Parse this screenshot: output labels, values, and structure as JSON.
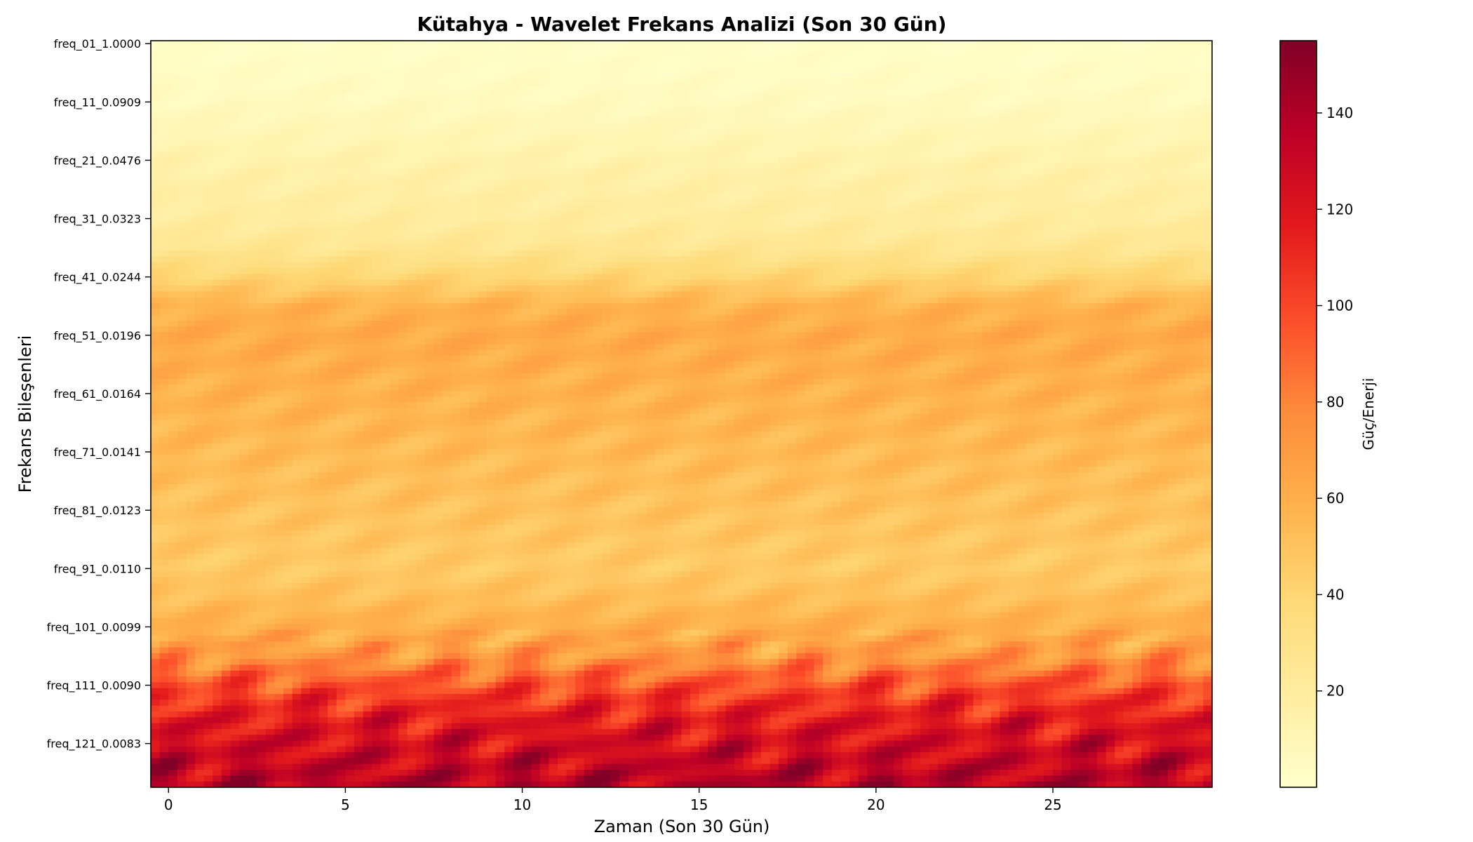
{
  "chart_data": {
    "type": "heatmap",
    "title": "Kütahya - Wavelet Frekans Analizi (Son 30 Gün)",
    "xlabel": "Zaman (Son 30 Gün)",
    "ylabel": "Frekans Bileşenleri",
    "colorbar_label": "Güç/Enerji",
    "colormap": "YlOrRd",
    "x_range": [
      -0.5,
      29.5
    ],
    "x_ticks": [
      0,
      5,
      10,
      15,
      20,
      25
    ],
    "n_frequencies": 128,
    "y_tick_labels": [
      "freq_01_1.0000",
      "freq_11_0.0909",
      "freq_21_0.0476",
      "freq_31_0.0323",
      "freq_41_0.0244",
      "freq_51_0.0196",
      "freq_61_0.0164",
      "freq_71_0.0141",
      "freq_81_0.0123",
      "freq_91_0.0110",
      "freq_101_0.0099",
      "freq_111_0.0090",
      "freq_121_0.0083"
    ],
    "y_tick_indices": [
      0,
      10,
      20,
      30,
      40,
      50,
      60,
      70,
      80,
      90,
      100,
      110,
      120
    ],
    "color_range": [
      0,
      155
    ],
    "colorbar_ticks": [
      20,
      40,
      60,
      80,
      100,
      120,
      140
    ],
    "row_profile": {
      "frequency_index": [
        0,
        10,
        20,
        30,
        35,
        40,
        45,
        50,
        55,
        60,
        70,
        80,
        90,
        95,
        100,
        105,
        108,
        112,
        116,
        120,
        124,
        127
      ],
      "mean_power": [
        2,
        6,
        14,
        20,
        26,
        40,
        58,
        62,
        60,
        58,
        54,
        50,
        46,
        52,
        60,
        72,
        88,
        105,
        118,
        125,
        132,
        138
      ]
    }
  }
}
